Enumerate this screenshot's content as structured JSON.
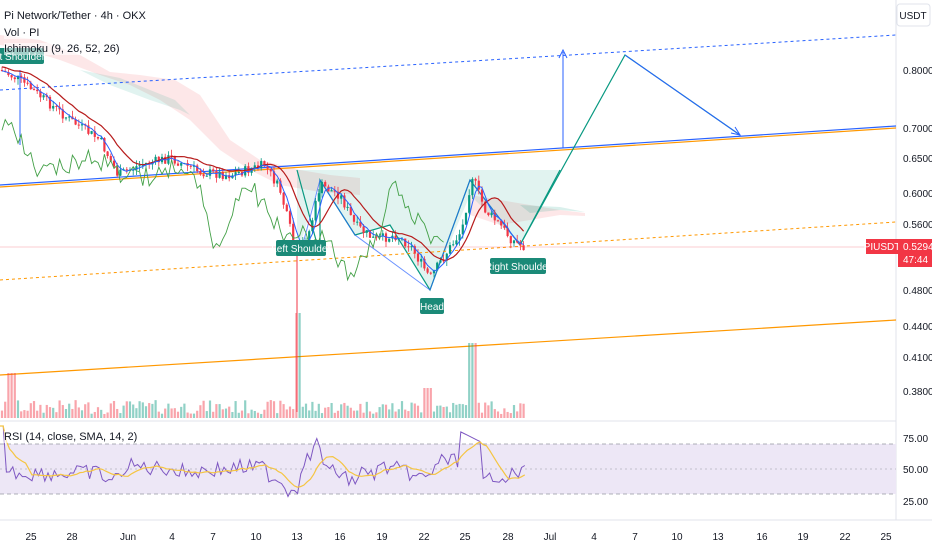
{
  "header": {
    "symbol_title": "Pi Network/Tether · 4h · OKX",
    "vol_legend": "Vol · PI",
    "ichimoku_legend": "Ichimoku (9, 26, 52, 26)",
    "rsi_legend": "RSI (14, close, SMA, 14, 2)",
    "currency": "USDT"
  },
  "price_axis": {
    "ticks": [
      "0.8000",
      "0.7000",
      "0.6500",
      "0.6000",
      "0.5600",
      "0.4800",
      "0.4400",
      "0.4100",
      "0.3800"
    ],
    "current_symbol": "PIUSDT",
    "current_price": "0.5294",
    "countdown": "47:44",
    "accent_color": "#f23645"
  },
  "rsi_axis": {
    "ticks": [
      "75.00",
      "50.00",
      "25.00"
    ]
  },
  "time_axis": {
    "labels": [
      "25",
      "28",
      "Jun",
      "4",
      "7",
      "10",
      "13",
      "16",
      "19",
      "22",
      "25",
      "28",
      "Jul",
      "4",
      "7",
      "10",
      "13",
      "16",
      "19",
      "22",
      "25"
    ]
  },
  "annotations": {
    "left_shoulder": "Left Shoulder",
    "head": "Head",
    "right_shoulder": "Right Shoulder",
    "partial_label": "Right Shoulder"
  },
  "colors": {
    "label_bg": "#1b8a78",
    "up": "#089981",
    "down": "#f23645",
    "trend_blue": "#2962ff",
    "trend_orange": "#ff9800",
    "rsi_line": "#7e57c2",
    "rsi_sma": "#f5c542",
    "rsi_band": "#ede7f6"
  }
}
